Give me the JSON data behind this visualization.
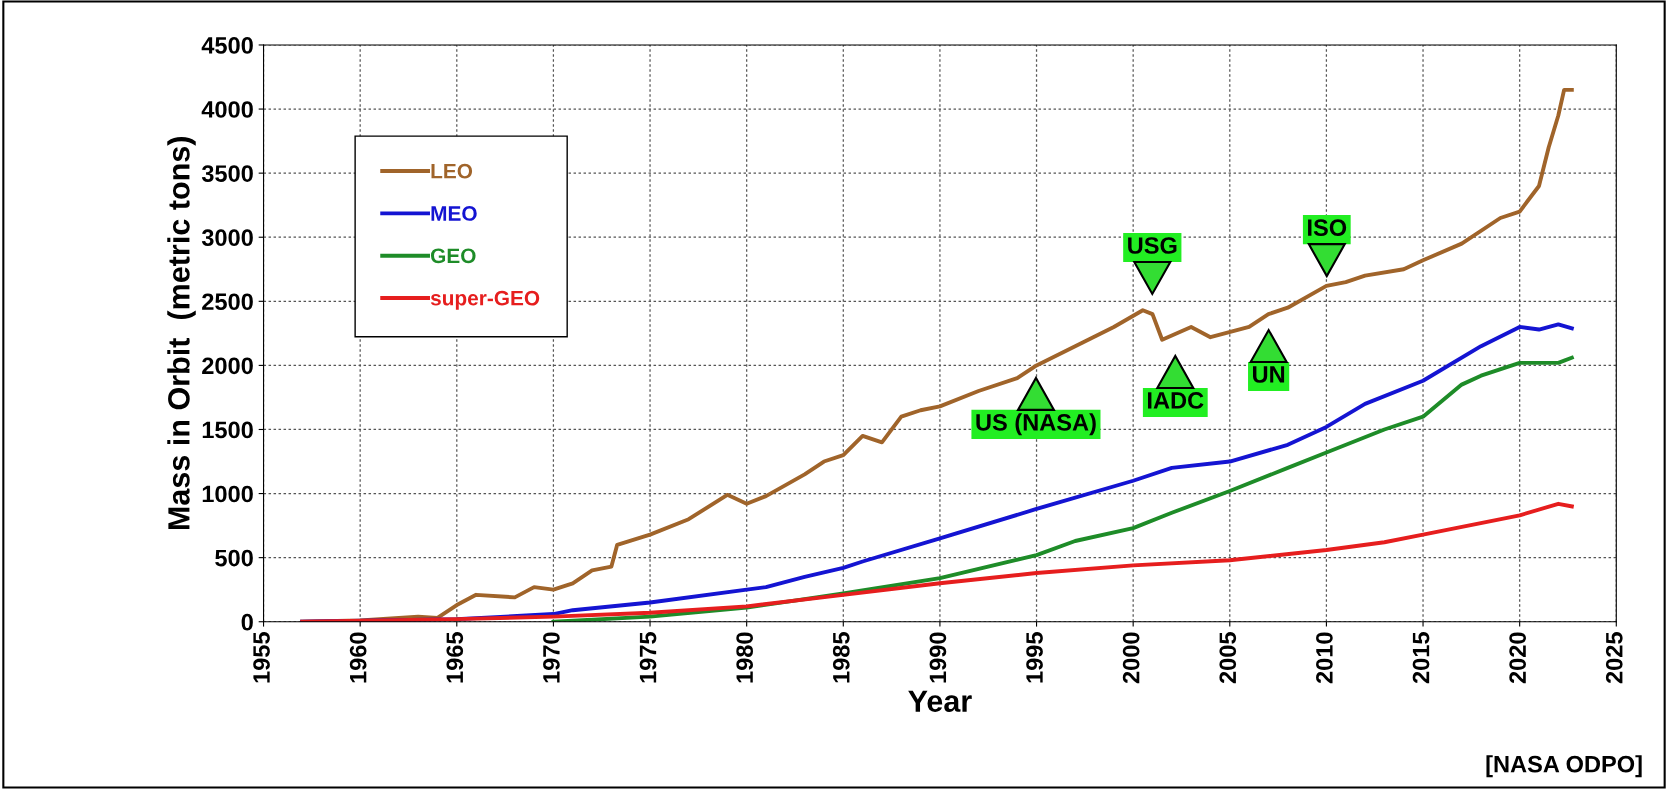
{
  "chart_data": {
    "type": "line",
    "xlabel": "Year",
    "ylabel": "Mass in Orbit  (metric tons)",
    "xlim": [
      1955,
      2025
    ],
    "ylim": [
      0,
      4500
    ],
    "xticks": [
      1955,
      1960,
      1965,
      1970,
      1975,
      1980,
      1985,
      1990,
      1995,
      2000,
      2005,
      2010,
      2015,
      2020,
      2025
    ],
    "yticks": [
      0,
      500,
      1000,
      1500,
      2000,
      2500,
      3000,
      3500,
      4000,
      4500
    ],
    "grid": true,
    "legend": "top left",
    "line_style": "solid",
    "marker": "none",
    "series": [
      {
        "name": "LEO",
        "color": "#a0642a",
        "x": [
          1957,
          1960,
          1963,
          1964,
          1965,
          1966,
          1968,
          1969,
          1970,
          1971,
          1972,
          1973,
          1973.3,
          1975,
          1977,
          1979,
          1980,
          1981,
          1983,
          1984,
          1985,
          1986,
          1987,
          1988,
          1989,
          1990,
          1992,
          1994,
          1995,
          1997,
          1999,
          2000.5,
          2001,
          2001.5,
          2003,
          2004,
          2006,
          2007,
          2008,
          2010,
          2011,
          2012,
          2014,
          2015,
          2017,
          2019,
          2020,
          2021,
          2021.5,
          2022,
          2022.3,
          2022.7
        ],
        "values": [
          0,
          10,
          40,
          30,
          130,
          210,
          190,
          270,
          250,
          300,
          400,
          430,
          600,
          680,
          800,
          990,
          920,
          980,
          1150,
          1250,
          1300,
          1450,
          1400,
          1600,
          1650,
          1680,
          1800,
          1900,
          2000,
          2150,
          2300,
          2430,
          2400,
          2200,
          2300,
          2220,
          2300,
          2400,
          2450,
          2620,
          2650,
          2700,
          2750,
          2820,
          2950,
          3150,
          3200,
          3400,
          3700,
          3950,
          4150,
          4150
        ]
      },
      {
        "name": "MEO",
        "color": "#1414d2",
        "x": [
          1957,
          1965,
          1970,
          1971,
          1975,
          1980,
          1981,
          1983,
          1985,
          1986,
          1990,
          1995,
          2000,
          2002,
          2005,
          2008,
          2010,
          2012,
          2015,
          2018,
          2020,
          2021,
          2022,
          2022.7
        ],
        "values": [
          0,
          20,
          60,
          90,
          150,
          250,
          270,
          350,
          420,
          470,
          650,
          880,
          1100,
          1200,
          1250,
          1380,
          1520,
          1700,
          1880,
          2150,
          2300,
          2280,
          2320,
          2290
        ]
      },
      {
        "name": "GEO",
        "color": "#1e8c28",
        "x": [
          1970,
          1975,
          1980,
          1985,
          1990,
          1995,
          1997,
          2000,
          2002,
          2005,
          2008,
          2010,
          2013,
          2015,
          2017,
          2018,
          2020,
          2022,
          2022.7
        ],
        "values": [
          0,
          40,
          110,
          220,
          340,
          520,
          630,
          730,
          850,
          1020,
          1200,
          1320,
          1500,
          1600,
          1850,
          1920,
          2020,
          2020,
          2060
        ]
      },
      {
        "name": "super-GEO",
        "color": "#e61e1e",
        "x": [
          1957,
          1965,
          1970,
          1975,
          1980,
          1985,
          1990,
          1995,
          2000,
          2005,
          2010,
          2013,
          2015,
          2020,
          2022,
          2022.7
        ],
        "values": [
          0,
          20,
          40,
          70,
          120,
          210,
          300,
          380,
          440,
          480,
          560,
          620,
          680,
          830,
          920,
          900
        ]
      }
    ],
    "annotations": [
      "US (NASA)",
      "USG",
      "IADC",
      "UN",
      "ISO",
      "[NASA ODPO]"
    ]
  }
}
